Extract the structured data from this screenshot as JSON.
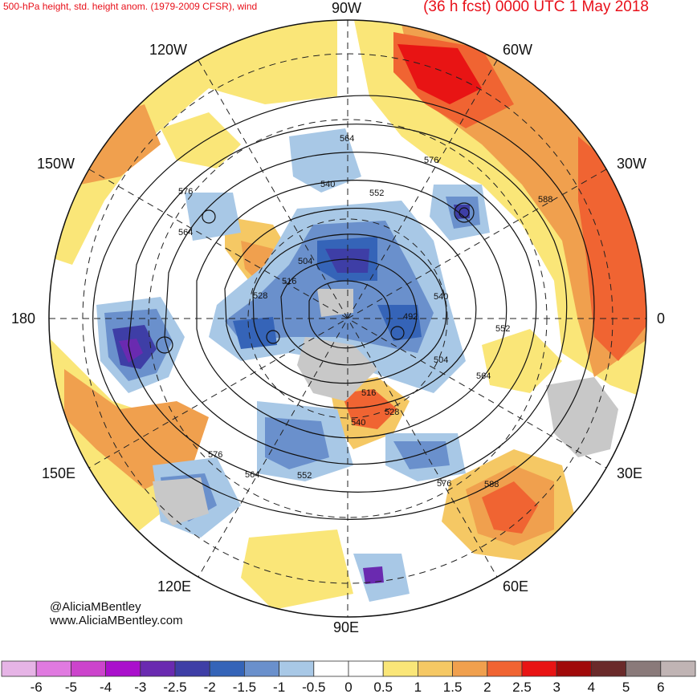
{
  "header": {
    "title_left": "500-hPa height, std. height anom. (1979-2009 CFSR), wind",
    "title_right": "(36 h fcst) 0000 UTC 1 May 2018"
  },
  "longitude_labels": {
    "lon_90w": "90W",
    "lon_120w": "120W",
    "lon_60w": "60W",
    "lon_150w": "150W",
    "lon_30w": "30W",
    "lon_180": "180",
    "lon_0": "0",
    "lon_150e": "150E",
    "lon_30e": "30E",
    "lon_120e": "120E",
    "lon_60e": "60E",
    "lon_90e": "90E"
  },
  "contour_labels": [
    "564",
    "576",
    "540",
    "552",
    "576",
    "588",
    "564",
    "504",
    "516",
    "528",
    "540",
    "492",
    "552",
    "504",
    "564",
    "516",
    "528",
    "540",
    "576",
    "564",
    "552",
    "576",
    "588"
  ],
  "credit": {
    "handle": "@AliciaMBentley",
    "website": "www.AliciaMBentley.com"
  },
  "colorbar": {
    "ticks": [
      "-6",
      "-5",
      "-4",
      "-3",
      "-2.5",
      "-2",
      "-1.5",
      "-1",
      "-0.5",
      "0",
      "0.5",
      "1",
      "1.5",
      "2",
      "2.5",
      "3",
      "4",
      "5",
      "6"
    ],
    "colors": [
      "#e6b4e6",
      "#e07ae0",
      "#cc44cc",
      "#aa10cc",
      "#6a2ab0",
      "#3e3ea6",
      "#3564b8",
      "#6a90cc",
      "#a8c8e6",
      "#ffffff",
      "#ffffff",
      "#fae678",
      "#f5c864",
      "#f0a04e",
      "#f06432",
      "#e81414",
      "#a00a0a",
      "#6a2a2a",
      "#8a7a7a",
      "#c0b4b4"
    ]
  }
}
